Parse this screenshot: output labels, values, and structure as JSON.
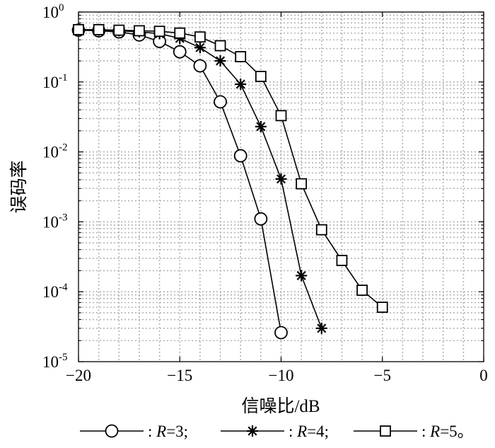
{
  "chart_data": {
    "type": "line",
    "x_label": "信噪比/dB",
    "y_label": "误码率",
    "xlim": [
      -20,
      0
    ],
    "ylim": [
      1e-05,
      1
    ],
    "yscale": "log",
    "grid": true,
    "x_ticks": [
      -20,
      -15,
      -10,
      -5,
      0
    ],
    "x_tick_labels": [
      "−20",
      "−15",
      "−10",
      "−5",
      "0"
    ],
    "y_ticks": [
      {
        "value": 1,
        "base": "10",
        "exp": "0"
      },
      {
        "value": 0.1,
        "base": "10",
        "exp": "-1"
      },
      {
        "value": 0.01,
        "base": "10",
        "exp": "-2"
      },
      {
        "value": 0.001,
        "base": "10",
        "exp": "-3"
      },
      {
        "value": 0.0001,
        "base": "10",
        "exp": "-4"
      },
      {
        "value": 1e-05,
        "base": "10",
        "exp": "-5"
      }
    ],
    "legend_position": "bottom",
    "legend_separator": ":",
    "series": [
      {
        "name": "R=3",
        "legend_prefix": "R",
        "legend_suffix": "=3;",
        "marker": "circle",
        "x": [
          -20,
          -19,
          -18,
          -17,
          -16,
          -15,
          -14,
          -13,
          -12,
          -11,
          -10
        ],
        "y": [
          0.55,
          0.54,
          0.52,
          0.47,
          0.38,
          0.27,
          0.17,
          0.052,
          0.0088,
          0.0011,
          2.6e-05
        ]
      },
      {
        "name": "R=4",
        "legend_prefix": "R",
        "legend_suffix": "=4;",
        "marker": "asterisk",
        "x": [
          -20,
          -19,
          -18,
          -17,
          -16,
          -15,
          -14,
          -13,
          -12,
          -11,
          -10,
          -9,
          -8
        ],
        "y": [
          0.56,
          0.55,
          0.54,
          0.52,
          0.49,
          0.42,
          0.31,
          0.2,
          0.093,
          0.023,
          0.0041,
          0.00017,
          3e-05
        ]
      },
      {
        "name": "R=5",
        "legend_prefix": "R",
        "legend_suffix": "=5。",
        "marker": "square",
        "x": [
          -20,
          -19,
          -18,
          -17,
          -16,
          -15,
          -14,
          -13,
          -12,
          -11,
          -10,
          -9,
          -8,
          -7,
          -6,
          -5
        ],
        "y": [
          0.56,
          0.56,
          0.55,
          0.54,
          0.53,
          0.5,
          0.44,
          0.33,
          0.23,
          0.12,
          0.033,
          0.0035,
          0.00077,
          0.00028,
          0.000105,
          6e-05
        ]
      }
    ]
  }
}
